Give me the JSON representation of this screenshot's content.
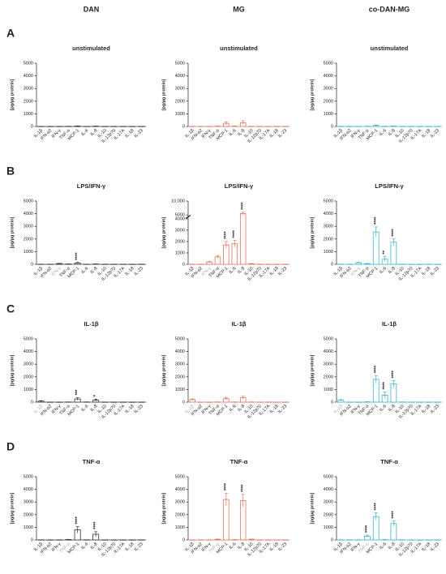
{
  "columns": [
    "DAN",
    "MG",
    "co-DAN-MG"
  ],
  "panels": [
    "A",
    "B",
    "C",
    "D"
  ],
  "chart_data": [
    {
      "type": "bar",
      "title": "unstimulated",
      "ylabel": "[pg/µg protein]",
      "color": "#333333",
      "categories": [
        "IL-1β",
        "IFN-α2",
        "IFN-γ",
        "TNF-α",
        "MCP-1",
        "IL-6",
        "IL-8",
        "IL-10",
        "IL-12p70",
        "IL-17A",
        "IL-18",
        "IL-23"
      ],
      "values": [
        5,
        5,
        5,
        10,
        30,
        5,
        20,
        5,
        5,
        5,
        5,
        5
      ],
      "errors": [
        3,
        3,
        3,
        5,
        15,
        3,
        10,
        3,
        3,
        3,
        3,
        3
      ],
      "stars": [
        null,
        null,
        null,
        null,
        null,
        null,
        null,
        null,
        null,
        null,
        null,
        null
      ],
      "muted": null,
      "ylim": [
        0,
        5000
      ],
      "yticks": [
        0,
        1000,
        2000,
        3000,
        4000,
        5000
      ]
    },
    {
      "type": "bar",
      "title": "unstimulated",
      "ylabel": "[pg/µg protein]",
      "color": "#e0735f",
      "categories": [
        "IL-1β",
        "IFN-α2",
        "IFN-γ",
        "TNF-α",
        "MCP-1",
        "IL-6",
        "IL-8",
        "IL-10",
        "IL-12p70",
        "IL-17A",
        "IL-18",
        "IL-23"
      ],
      "values": [
        10,
        5,
        5,
        20,
        250,
        20,
        300,
        10,
        5,
        5,
        5,
        5
      ],
      "errors": [
        5,
        3,
        3,
        10,
        120,
        10,
        150,
        5,
        3,
        3,
        3,
        3
      ],
      "stars": [
        null,
        null,
        null,
        null,
        null,
        null,
        null,
        null,
        null,
        null,
        null,
        null
      ],
      "muted": null,
      "ylim": [
        0,
        5000
      ],
      "yticks": [
        0,
        1000,
        2000,
        3000,
        4000,
        5000
      ]
    },
    {
      "type": "bar",
      "title": "unstimulated",
      "ylabel": "[pg/µg protein]",
      "color": "#3cb4cc",
      "categories": [
        "IL-1β",
        "IFN-α2",
        "IFN-γ",
        "TNF-α",
        "MCP-1",
        "IL-6",
        "IL-8",
        "IL-10",
        "IL-12p70",
        "IL-17A",
        "IL-18",
        "IL-23"
      ],
      "values": [
        10,
        5,
        5,
        15,
        80,
        10,
        30,
        5,
        5,
        5,
        5,
        5
      ],
      "errors": [
        5,
        3,
        3,
        8,
        40,
        5,
        15,
        3,
        3,
        3,
        3,
        3
      ],
      "stars": [
        null,
        null,
        null,
        null,
        null,
        null,
        null,
        null,
        null,
        null,
        null,
        null
      ],
      "muted": null,
      "ylim": [
        0,
        5000
      ],
      "yticks": [
        0,
        1000,
        2000,
        3000,
        4000,
        5000
      ]
    },
    {
      "type": "bar",
      "title": "LPS/IFN-γ",
      "ylabel": "[pg/µg protein]",
      "color": "#333333",
      "categories": [
        "IL-1β",
        "IFN-α2",
        "IFN-γ",
        "TNF-α",
        "MCP-1",
        "IL-6",
        "IL-8",
        "IL-10",
        "IL-12p70",
        "IL-17A",
        "IL-18",
        "IL-23"
      ],
      "values": [
        5,
        5,
        60,
        20,
        100,
        5,
        20,
        5,
        5,
        5,
        5,
        5
      ],
      "errors": [
        3,
        3,
        20,
        10,
        40,
        3,
        10,
        3,
        3,
        3,
        3,
        3
      ],
      "stars": [
        null,
        null,
        null,
        null,
        "****",
        null,
        null,
        null,
        null,
        null,
        null,
        null
      ],
      "muted": 2,
      "ylim": [
        0,
        5000
      ],
      "yticks": [
        0,
        1000,
        2000,
        3000,
        4000,
        5000
      ]
    },
    {
      "type": "bar",
      "title": "LPS/IFN-γ",
      "ylabel": "[pg/µg protein]",
      "color": "#e0735f",
      "categories": [
        "IL-1β",
        "IFN-α2",
        "IFN-γ",
        "TNF-α",
        "MCP-1",
        "IL-6",
        "IL-8",
        "IL-10",
        "IL-12p70",
        "IL-17A",
        "IL-18",
        "IL-23"
      ],
      "values": [
        10,
        5,
        200,
        650,
        1700,
        1800,
        5500,
        50,
        5,
        5,
        5,
        5
      ],
      "errors": [
        5,
        3,
        40,
        120,
        300,
        300,
        500,
        20,
        3,
        3,
        3,
        3
      ],
      "stars": [
        null,
        null,
        null,
        null,
        "****",
        "****",
        "****",
        null,
        null,
        null,
        null,
        null
      ],
      "muted": 2,
      "ylim": [
        0,
        10000
      ],
      "ybreak": [
        4000,
        5000
      ],
      "yticks": [
        0,
        1000,
        2000,
        3000,
        4000,
        5000,
        {
          "value": 10000,
          "label": "10,000"
        }
      ]
    },
    {
      "type": "bar",
      "title": "LPS/IFN-γ",
      "ylabel": "[pg/µg protein]",
      "color": "#3cb4cc",
      "categories": [
        "IL-1β",
        "IFN-α2",
        "IFN-γ",
        "TNF-α",
        "MCP-1",
        "IL-6",
        "IL-8",
        "IL-10",
        "IL-12p70",
        "IL-17A",
        "IL-18",
        "IL-23"
      ],
      "values": [
        10,
        5,
        120,
        50,
        2550,
        400,
        1750,
        10,
        5,
        5,
        5,
        5
      ],
      "errors": [
        5,
        3,
        40,
        20,
        400,
        200,
        250,
        5,
        3,
        3,
        3,
        3
      ],
      "stars": [
        null,
        null,
        null,
        null,
        "****",
        "**",
        "****",
        null,
        null,
        null,
        null,
        null
      ],
      "muted": 2,
      "ylim": [
        0,
        5000
      ],
      "yticks": [
        0,
        1000,
        2000,
        3000,
        4000,
        5000
      ]
    },
    {
      "type": "bar",
      "title": "IL-1β",
      "ylabel": "[pg/µg protein]",
      "color": "#333333",
      "categories": [
        "IL-1β",
        "IFN-α2",
        "IFN-γ",
        "TNF-α",
        "MCP-1",
        "IL-6",
        "IL-8",
        "IL-10",
        "IL-12p70",
        "IL-17A",
        "IL-18",
        "IL-23"
      ],
      "values": [
        80,
        5,
        5,
        10,
        250,
        10,
        150,
        5,
        5,
        5,
        5,
        5
      ],
      "errors": [
        40,
        3,
        3,
        5,
        100,
        5,
        80,
        3,
        3,
        3,
        3,
        3
      ],
      "stars": [
        null,
        null,
        null,
        null,
        "***",
        null,
        "*",
        null,
        null,
        null,
        null,
        null
      ],
      "muted": 0,
      "ylim": [
        0,
        5000
      ],
      "yticks": [
        0,
        1000,
        2000,
        3000,
        4000,
        5000
      ]
    },
    {
      "type": "bar",
      "title": "IL-1β",
      "ylabel": "[pg/µg protein]",
      "color": "#e0735f",
      "categories": [
        "IL-1β",
        "IFN-α2",
        "IFN-γ",
        "TNF-α",
        "MCP-1",
        "IL-6",
        "IL-8",
        "IL-10",
        "IL-12p70",
        "IL-17A",
        "IL-18",
        "IL-23"
      ],
      "values": [
        200,
        5,
        5,
        10,
        280,
        10,
        350,
        10,
        5,
        5,
        5,
        5
      ],
      "errors": [
        50,
        3,
        3,
        5,
        100,
        5,
        120,
        5,
        3,
        3,
        3,
        3
      ],
      "stars": [
        null,
        null,
        null,
        null,
        null,
        null,
        null,
        null,
        null,
        null,
        null,
        null
      ],
      "muted": 0,
      "ylim": [
        0,
        5000
      ],
      "yticks": [
        0,
        1000,
        2000,
        3000,
        4000,
        5000
      ]
    },
    {
      "type": "bar",
      "title": "IL-1β",
      "ylabel": "[pg/µg protein]",
      "color": "#3cb4cc",
      "categories": [
        "IL-1β",
        "IFN-α2",
        "IFN-γ",
        "TNF-α",
        "MCP-1",
        "IL-6",
        "IL-8",
        "IL-10",
        "IL-12p70",
        "IL-17A",
        "IL-18",
        "IL-23"
      ],
      "values": [
        150,
        5,
        5,
        20,
        1800,
        550,
        1450,
        10,
        5,
        5,
        5,
        5
      ],
      "errors": [
        50,
        3,
        3,
        10,
        300,
        250,
        250,
        5,
        3,
        3,
        3,
        3
      ],
      "stars": [
        null,
        null,
        null,
        null,
        "****",
        "****",
        "****",
        null,
        null,
        null,
        null,
        null
      ],
      "muted": 0,
      "ylim": [
        0,
        5000
      ],
      "yticks": [
        0,
        1000,
        2000,
        3000,
        4000,
        5000
      ]
    },
    {
      "type": "bar",
      "title": "TNF-α",
      "ylabel": "[pg/µg protein]",
      "color": "#333333",
      "categories": [
        "IL-1β",
        "IFN-α2",
        "IFN-γ",
        "TNF-α",
        "MCP-1",
        "IL-6",
        "IL-8",
        "IL-10",
        "IL-12p70",
        "IL-17A",
        "IL-18",
        "IL-23"
      ],
      "values": [
        5,
        5,
        5,
        30,
        800,
        10,
        450,
        5,
        5,
        5,
        5,
        5
      ],
      "errors": [
        3,
        3,
        3,
        15,
        250,
        5,
        200,
        3,
        3,
        3,
        3,
        3
      ],
      "stars": [
        null,
        null,
        null,
        null,
        "****",
        null,
        "****",
        null,
        null,
        null,
        null,
        null
      ],
      "muted": 3,
      "ylim": [
        0,
        5000
      ],
      "yticks": [
        0,
        1000,
        2000,
        3000,
        4000,
        5000
      ]
    },
    {
      "type": "bar",
      "title": "TNF-α",
      "ylabel": "[pg/µg protein]",
      "color": "#e0735f",
      "categories": [
        "IL-1β",
        "IFN-α2",
        "IFN-γ",
        "TNF-α",
        "MCP-1",
        "IL-6",
        "IL-8",
        "IL-10",
        "IL-12p70",
        "IL-17A",
        "IL-18",
        "IL-23"
      ],
      "values": [
        5,
        5,
        5,
        50,
        3200,
        20,
        3100,
        50,
        5,
        5,
        5,
        5
      ],
      "errors": [
        3,
        3,
        3,
        20,
        500,
        10,
        500,
        20,
        3,
        3,
        3,
        3
      ],
      "stars": [
        null,
        null,
        null,
        null,
        "****",
        null,
        "****",
        null,
        null,
        null,
        null,
        null
      ],
      "muted": 3,
      "ylim": [
        0,
        5000
      ],
      "yticks": [
        0,
        1000,
        2000,
        3000,
        4000,
        5000
      ]
    },
    {
      "type": "bar",
      "title": "TNF-α",
      "ylabel": "[pg/µg protein]",
      "color": "#3cb4cc",
      "categories": [
        "IL-1β",
        "IFN-α2",
        "IFN-γ",
        "TNF-α",
        "MCP-1",
        "IL-6",
        "IL-8",
        "IL-10",
        "IL-12p70",
        "IL-17A",
        "IL-18",
        "IL-23"
      ],
      "values": [
        5,
        5,
        5,
        300,
        1850,
        20,
        1300,
        10,
        5,
        5,
        5,
        5
      ],
      "errors": [
        3,
        3,
        3,
        80,
        300,
        10,
        200,
        5,
        3,
        3,
        3,
        3
      ],
      "stars": [
        null,
        null,
        null,
        "****",
        "****",
        null,
        "****",
        null,
        null,
        null,
        null,
        null
      ],
      "muted": 3,
      "ylim": [
        0,
        5000
      ],
      "yticks": [
        0,
        1000,
        2000,
        3000,
        4000,
        5000
      ]
    }
  ]
}
